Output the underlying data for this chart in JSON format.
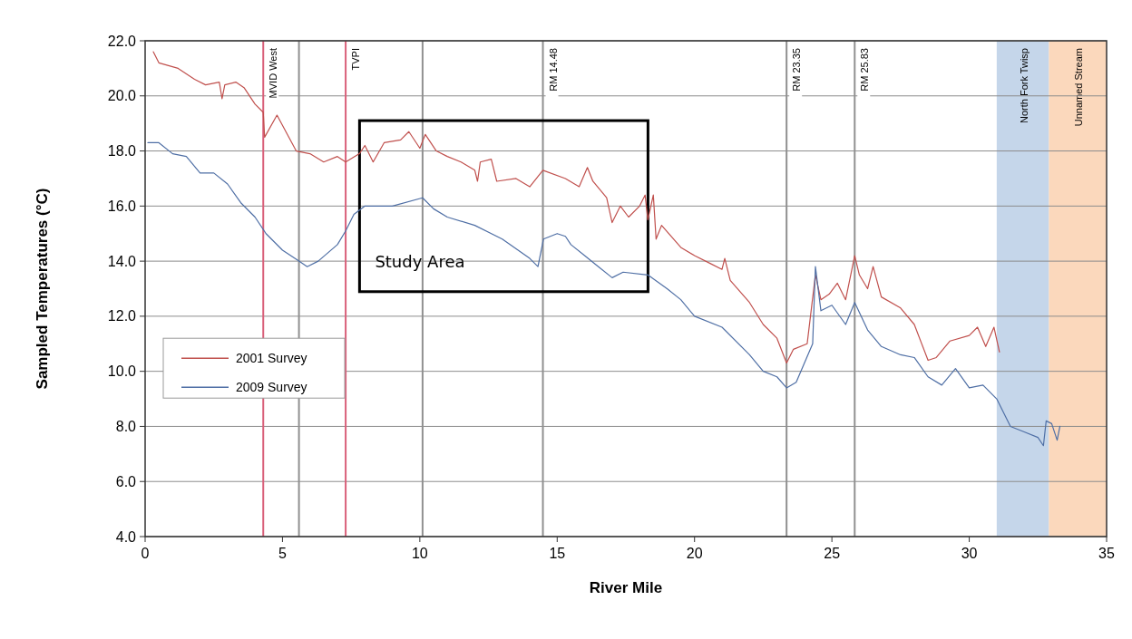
{
  "chart_data": {
    "type": "line",
    "xlabel": "River Mile",
    "ylabel": "Sampled Temperatures (°C)",
    "xlim": [
      0,
      35
    ],
    "xticks": [
      0,
      5,
      10,
      15,
      20,
      25,
      30,
      35
    ],
    "ylim": [
      4,
      22
    ],
    "yticks": [
      {
        "value": 4,
        "label": "4.0"
      },
      {
        "value": 6,
        "label": "6.0"
      },
      {
        "value": 8,
        "label": "8.0"
      },
      {
        "value": 10,
        "label": "10.0"
      },
      {
        "value": 12,
        "label": "12.0"
      },
      {
        "value": 14,
        "label": "14.0"
      },
      {
        "value": 16,
        "label": "16.0"
      },
      {
        "value": 18,
        "label": "18.0"
      },
      {
        "value": 20,
        "label": "20.0"
      },
      {
        "value": 22,
        "label": "22.0"
      }
    ],
    "grid": "y",
    "legend": "left",
    "line_style": "solid",
    "marker": "none",
    "series": [
      {
        "name": "2001 Survey",
        "color": "#c0504d",
        "x": [
          0.3,
          0.5,
          1.2,
          1.8,
          2.2,
          2.7,
          2.8,
          2.9,
          3.3,
          3.6,
          4.0,
          4.3,
          4.35,
          4.8,
          5.5,
          6.0,
          6.5,
          7.0,
          7.3,
          7.8,
          8.0,
          8.3,
          8.7,
          9.3,
          9.6,
          10.0,
          10.2,
          10.6,
          11.0,
          11.5,
          12.0,
          12.1,
          12.2,
          12.6,
          12.8,
          13.5,
          14.0,
          14.48,
          15.3,
          15.8,
          16.1,
          16.3,
          16.8,
          17.0,
          17.3,
          17.6,
          18.0,
          18.2,
          18.3,
          18.5,
          18.6,
          18.8,
          19.5,
          20.0,
          20.6,
          21.0,
          21.1,
          21.3,
          22.0,
          22.5,
          23.0,
          23.35,
          23.6,
          24.1,
          24.4,
          24.6,
          24.9,
          25.2,
          25.5,
          25.83,
          26.0,
          26.3,
          26.5,
          26.8,
          27.5,
          28.0,
          28.5,
          28.8,
          29.3,
          30.0,
          30.3,
          30.6,
          30.9,
          31.1
        ],
        "values": [
          21.6,
          21.2,
          21.0,
          20.6,
          20.4,
          20.5,
          19.9,
          20.4,
          20.5,
          20.3,
          19.7,
          19.4,
          18.5,
          19.3,
          18.0,
          17.9,
          17.6,
          17.8,
          17.6,
          17.9,
          18.2,
          17.6,
          18.3,
          18.4,
          18.7,
          18.1,
          18.6,
          18.0,
          17.8,
          17.6,
          17.3,
          16.9,
          17.6,
          17.7,
          16.9,
          17.0,
          16.7,
          17.3,
          17.0,
          16.7,
          17.4,
          16.9,
          16.3,
          15.4,
          16.0,
          15.6,
          16.0,
          16.4,
          15.5,
          16.4,
          14.8,
          15.3,
          14.5,
          14.2,
          13.9,
          13.7,
          14.1,
          13.3,
          12.5,
          11.7,
          11.2,
          10.3,
          10.8,
          11.0,
          13.5,
          12.6,
          12.8,
          13.2,
          12.6,
          14.2,
          13.5,
          13.0,
          13.8,
          12.7,
          12.3,
          11.7,
          10.4,
          10.5,
          11.1,
          11.3,
          11.6,
          10.9,
          11.6,
          10.7
        ]
      },
      {
        "name": "2009 Survey",
        "color": "#4f6fa5",
        "x": [
          0.1,
          0.5,
          1.0,
          1.5,
          2.0,
          2.5,
          3.0,
          3.5,
          4.0,
          4.4,
          5.0,
          5.6,
          5.9,
          6.3,
          7.0,
          7.3,
          7.6,
          8.0,
          9.0,
          10.1,
          10.5,
          11.0,
          12.0,
          13.0,
          14.0,
          14.3,
          14.5,
          15.0,
          15.3,
          15.5,
          16.0,
          16.5,
          17.0,
          17.4,
          18.3,
          19.0,
          19.5,
          20.0,
          21.0,
          22.0,
          22.5,
          23.0,
          23.35,
          23.7,
          24.0,
          24.3,
          24.4,
          24.6,
          25.0,
          25.5,
          25.83,
          26.3,
          26.8,
          27.5,
          28.0,
          28.5,
          29.0,
          29.5,
          30.0,
          30.5,
          31.0,
          31.5,
          32.0,
          32.5,
          32.7,
          32.8,
          33.0,
          33.2,
          33.3
        ],
        "values": [
          18.3,
          18.3,
          17.9,
          17.8,
          17.2,
          17.2,
          16.8,
          16.1,
          15.6,
          15.0,
          14.4,
          14.0,
          13.8,
          14.0,
          14.6,
          15.1,
          15.7,
          16.0,
          16.0,
          16.3,
          15.9,
          15.6,
          15.3,
          14.8,
          14.1,
          13.8,
          14.8,
          15.0,
          14.9,
          14.6,
          14.2,
          13.8,
          13.4,
          13.6,
          13.5,
          13.0,
          12.6,
          12.0,
          11.6,
          10.6,
          10.0,
          9.8,
          9.4,
          9.6,
          10.3,
          11.0,
          13.8,
          12.2,
          12.4,
          11.7,
          12.5,
          11.5,
          10.9,
          10.6,
          10.5,
          9.8,
          9.5,
          10.1,
          9.4,
          9.5,
          9.0,
          8.0,
          7.8,
          7.6,
          7.3,
          8.2,
          8.1,
          7.5,
          8.0
        ]
      }
    ],
    "ref_lines": [
      {
        "axis": "x",
        "value": 4.3,
        "label": "MVID West",
        "color": "#d9607a"
      },
      {
        "axis": "x",
        "value": 5.6,
        "label": null,
        "color": "#909090"
      },
      {
        "axis": "x",
        "value": 7.3,
        "label": "TVPI",
        "color": "#d9607a"
      },
      {
        "axis": "x",
        "value": 10.1,
        "label": null,
        "color": "#909090"
      },
      {
        "axis": "x",
        "value": 14.48,
        "label": "RM 14.48",
        "color": "#909090"
      },
      {
        "axis": "x",
        "value": 23.35,
        "label": "RM 23.35",
        "color": "#909090"
      },
      {
        "axis": "x",
        "value": 25.83,
        "label": "RM 25.83",
        "color": "#909090"
      }
    ],
    "bands": [
      {
        "axis": "x",
        "from": 31,
        "to": 32.9,
        "label": "North Fork Twisp",
        "color": "#c5d6ea"
      },
      {
        "axis": "x",
        "from": 32.9,
        "to": 35,
        "label": "Unnamed Stream",
        "color": "#fbd8bc"
      }
    ],
    "annotations": [
      "Study Area"
    ]
  }
}
